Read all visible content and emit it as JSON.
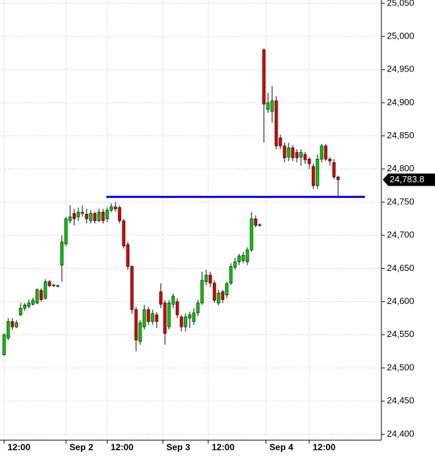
{
  "chart_data": {
    "type": "candlestick",
    "x": [
      0,
      1,
      2,
      3,
      4,
      5,
      6,
      7,
      8,
      9,
      10,
      11,
      12,
      13,
      14,
      15,
      16,
      17,
      18,
      19,
      20,
      21,
      22,
      23,
      24,
      25,
      26,
      27,
      28,
      29,
      30,
      31,
      32,
      33,
      34,
      35,
      36,
      37,
      38,
      39,
      40,
      41,
      42,
      43,
      44,
      45,
      46,
      47,
      48,
      49,
      50,
      51,
      52,
      53,
      54,
      55,
      56,
      57,
      58,
      59,
      60,
      61,
      62,
      63,
      64,
      65,
      66,
      67,
      68,
      69,
      70,
      71,
      72,
      73,
      74,
      75,
      76,
      77,
      78,
      79,
      80,
      81
    ],
    "open": [
      24520,
      24545,
      24570,
      24562,
      24580,
      24590,
      24593,
      24596,
      24598,
      24617,
      24605,
      24630,
      24624,
      24624,
      24655,
      24687,
      24722,
      24733,
      24728,
      24733,
      24732,
      24722,
      24733,
      24722,
      24735,
      24725,
      24738,
      24743,
      24742,
      24722,
      24686,
      24653,
      24588,
      24540,
      24562,
      24588,
      24570,
      24580,
      24615,
      24598,
      24562,
      24596,
      24600,
      24577,
      24562,
      24575,
      24570,
      24583,
      24598,
      24630,
      24640,
      24628,
      24598,
      24615,
      24610,
      24628,
      24652,
      24660,
      24662,
      24660,
      24678,
      24725,
      24715,
      24980,
      24890,
      24887,
      24903,
      24847,
      24835,
      24818,
      24832,
      24825,
      24818,
      24822,
      24815,
      24804,
      24775,
      24815,
      24835,
      24815,
      24810,
      24788
    ],
    "high": [
      24552,
      24575,
      24575,
      24572,
      24598,
      24598,
      24603,
      24606,
      24620,
      24620,
      24634,
      24633,
      24627,
      24626,
      24700,
      24728,
      24745,
      24740,
      24742,
      24745,
      24740,
      24738,
      24736,
      24740,
      24740,
      24742,
      24748,
      24750,
      24745,
      24725,
      24690,
      24655,
      24592,
      24572,
      24595,
      24592,
      24588,
      24584,
      24628,
      24602,
      24602,
      24612,
      24605,
      24580,
      24582,
      24585,
      24590,
      24603,
      24645,
      24648,
      24645,
      24632,
      24618,
      24618,
      24630,
      24658,
      24666,
      24672,
      24675,
      24682,
      24735,
      24730,
      24718,
      24982,
      24915,
      24925,
      24910,
      24852,
      24840,
      24840,
      24836,
      24830,
      24830,
      24826,
      24818,
      24808,
      24822,
      24838,
      24838,
      24818,
      24815,
      24790
    ],
    "low": [
      24518,
      24542,
      24557,
      24560,
      24578,
      24586,
      24590,
      24594,
      24596,
      24600,
      24603,
      24622,
      24622,
      24622,
      24630,
      24684,
      24718,
      24715,
      24722,
      24728,
      24718,
      24718,
      24718,
      24720,
      24718,
      24720,
      24735,
      24736,
      24718,
      24680,
      24648,
      24582,
      24525,
      24535,
      24558,
      24565,
      24565,
      24560,
      24590,
      24535,
      24558,
      24590,
      24575,
      24555,
      24555,
      24560,
      24565,
      24578,
      24595,
      24625,
      24622,
      24598,
      24594,
      24598,
      24605,
      24625,
      24648,
      24655,
      24658,
      24655,
      24675,
      24712,
      24713,
      24840,
      24885,
      24870,
      24830,
      24830,
      24810,
      24812,
      24812,
      24810,
      24805,
      24808,
      24800,
      24770,
      24770,
      24810,
      24812,
      24805,
      24785,
      24758
    ],
    "close": [
      24550,
      24570,
      24562,
      24568,
      24590,
      24595,
      24598,
      24602,
      24618,
      24603,
      24630,
      24624,
      24625,
      24624,
      24690,
      24725,
      24728,
      24725,
      24735,
      24735,
      24725,
      24733,
      24722,
      24735,
      24722,
      24738,
      24743,
      24740,
      24722,
      24684,
      24653,
      24588,
      24542,
      24568,
      24588,
      24570,
      24582,
      24570,
      24596,
      24552,
      24598,
      24608,
      24580,
      24562,
      24577,
      24580,
      24583,
      24598,
      24632,
      24640,
      24628,
      24602,
      24613,
      24603,
      24627,
      24653,
      24660,
      24669,
      24670,
      24678,
      24725,
      24715,
      24716,
      24898,
      24900,
      24903,
      24835,
      24835,
      24817,
      24832,
      24817,
      24817,
      24825,
      24814,
      24808,
      24775,
      24815,
      24835,
      24815,
      24812,
      24788,
      24784
    ],
    "up_color": "#00cc00",
    "down_color": "#dd0000",
    "xlim": [
      -1,
      91.5
    ],
    "xticks": [
      {
        "value": 0,
        "label": "12:00"
      },
      {
        "value": 15,
        "label": "Sep 2"
      },
      {
        "value": 25,
        "label": "12:00"
      },
      {
        "value": 38.5,
        "label": "Sep 3"
      },
      {
        "value": 49.5,
        "label": "12:00"
      },
      {
        "value": 63.5,
        "label": "Sep 4"
      },
      {
        "value": 74,
        "label": "12:00"
      }
    ],
    "ylim": [
      24391,
      25055
    ],
    "yticks": [
      {
        "value": 24400,
        "label": "24,400"
      },
      {
        "value": 24450,
        "label": "24,450"
      },
      {
        "value": 24500,
        "label": "24,500"
      },
      {
        "value": 24550,
        "label": "24,550"
      },
      {
        "value": 24600,
        "label": "24,600"
      },
      {
        "value": 24650,
        "label": "24,650"
      },
      {
        "value": 24700,
        "label": "24,700"
      },
      {
        "value": 24750,
        "label": "24,750"
      },
      {
        "value": 24800,
        "label": "24,800"
      },
      {
        "value": 24850,
        "label": "24,850"
      },
      {
        "value": 24900,
        "label": "24,900"
      },
      {
        "value": 24950,
        "label": "24,950"
      },
      {
        "value": 25000,
        "label": "25,000"
      },
      {
        "value": 25050,
        "label": "25,050"
      }
    ],
    "grid": true,
    "level": {
      "value": 24758,
      "from": 24.8,
      "to": 87.5,
      "color": "#0000e0"
    },
    "last_price": {
      "value": 24783.8,
      "label": "24,783.8"
    }
  }
}
